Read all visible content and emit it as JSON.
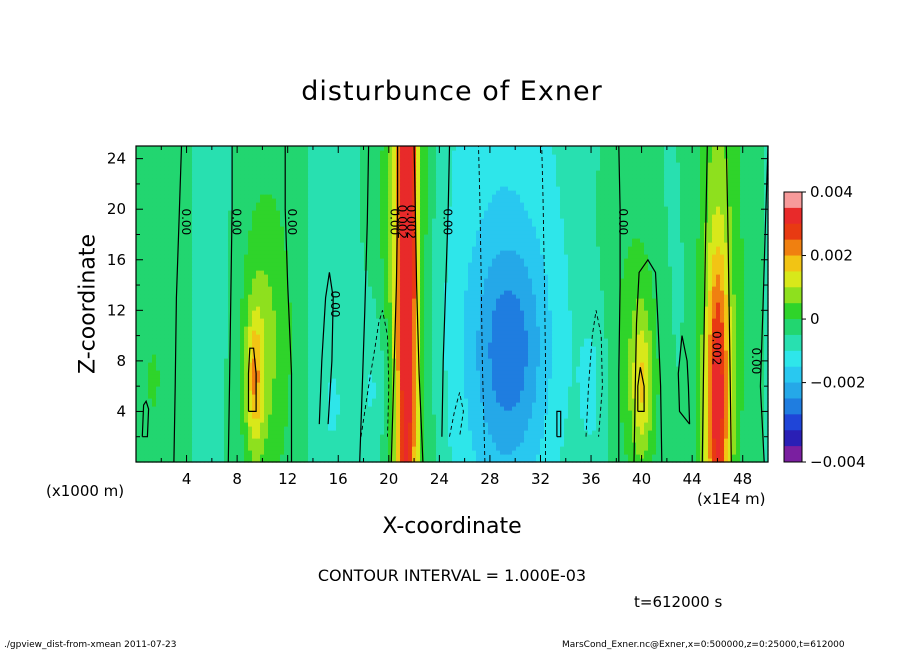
{
  "header": {
    "title": "disturbunce of Exner"
  },
  "chart_data": {
    "type": "heatmap",
    "title": "disturbunce of Exner",
    "xlabel": "X-coordinate",
    "ylabel": "Z-coordinate",
    "x_unit_label": "(x1000 m)",
    "x_scale_label": "(x1E4 m)",
    "xlim": [
      0,
      50
    ],
    "ylim": [
      0,
      25
    ],
    "xticks": [
      "4",
      "8",
      "12",
      "16",
      "20",
      "24",
      "28",
      "32",
      "36",
      "40",
      "44",
      "48"
    ],
    "yticks": [
      "4",
      "8",
      "12",
      "16",
      "20",
      "24"
    ],
    "colorbar": {
      "range": [
        -0.004,
        0.004
      ],
      "tick_labels": [
        "0.004",
        "0.002",
        "0",
        "−0.002",
        "−0.004"
      ]
    },
    "contour_interval_text": "CONTOUR INTERVAL = 1.000E-03",
    "contour_labels": [
      "0.00",
      "0.00",
      "0.00",
      "0.00",
      "0.00",
      "0.002",
      "0.002",
      "0.00",
      "0.00",
      "0.002",
      "0.00"
    ],
    "features": [
      {
        "x": 21.5,
        "amplitude": 0.0035,
        "type": "positive column"
      },
      {
        "x": 46.0,
        "amplitude": 0.003,
        "type": "positive column"
      },
      {
        "x": 9.5,
        "amplitude": 0.0015,
        "type": "positive lobe"
      },
      {
        "x": 40.0,
        "amplitude": 0.0012,
        "type": "positive lobe"
      },
      {
        "x": 29.5,
        "amplitude": -0.0017,
        "type": "negative region"
      },
      {
        "x": 19.0,
        "amplitude": -0.0008,
        "type": "negative lobe"
      }
    ]
  },
  "annotations": {
    "time": "t=612000 s",
    "footer_left": "./gpview_dist-from-xmean  2011-07-23",
    "footer_right": "MarsCond_Exner.nc@Exner,x=0:500000,z=0:25000,t=612000"
  }
}
